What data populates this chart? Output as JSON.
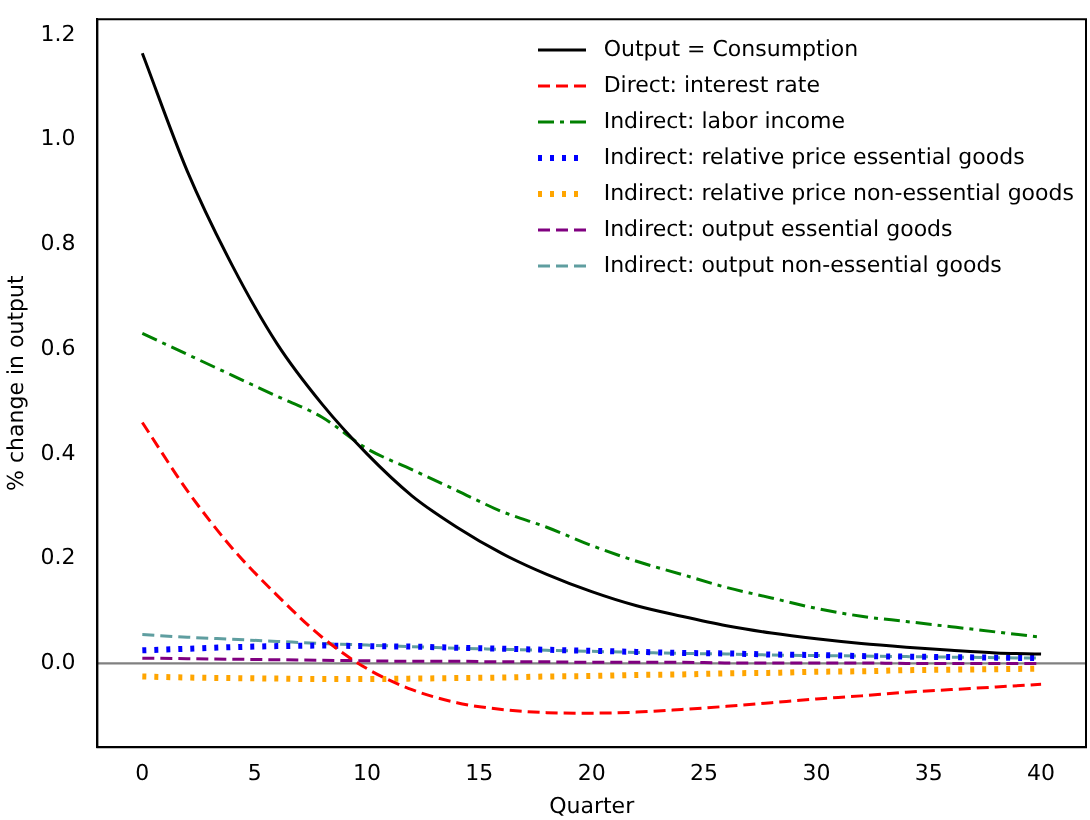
{
  "chart_data": {
    "type": "line",
    "xlabel": "Quarter",
    "ylabel": "% change in output",
    "x": [
      0,
      2,
      4,
      6,
      8,
      10,
      12,
      14,
      16,
      18,
      20,
      22,
      24,
      26,
      28,
      30,
      32,
      34,
      36,
      38,
      40
    ],
    "xlim": [
      -2,
      42
    ],
    "xticks": [
      0,
      5,
      10,
      15,
      20,
      25,
      30,
      35,
      40
    ],
    "ylim": [
      -0.16,
      1.23
    ],
    "yticks": [
      {
        "value": 0,
        "label": "0.0"
      },
      {
        "value": 0.2,
        "label": "0.2"
      },
      {
        "value": 0.4,
        "label": "0.4"
      },
      {
        "value": 0.6,
        "label": "0.6"
      },
      {
        "value": 0.8,
        "label": "0.8"
      },
      {
        "value": 1.0,
        "label": "1.0"
      },
      {
        "value": 1.2,
        "label": "1.2"
      }
    ],
    "grid": false,
    "legend": "top right",
    "marker": "none",
    "ref_lines": [
      {
        "axis": "y",
        "value": 0,
        "color": "#808080"
      }
    ],
    "series": [
      {
        "name": "Output = Consumption",
        "color": "#000000",
        "line_style": "solid",
        "values": [
          1.165,
          0.94,
          0.76,
          0.61,
          0.495,
          0.4,
          0.32,
          0.26,
          0.21,
          0.17,
          0.137,
          0.11,
          0.09,
          0.072,
          0.058,
          0.047,
          0.038,
          0.031,
          0.025,
          0.02,
          0.018
        ]
      },
      {
        "name": "Direct: interest rate",
        "color": "#ff0000",
        "line_style": "dashed",
        "values": [
          0.46,
          0.33,
          0.22,
          0.13,
          0.05,
          -0.01,
          -0.05,
          -0.075,
          -0.088,
          -0.094,
          -0.095,
          -0.093,
          -0.088,
          -0.082,
          -0.075,
          -0.068,
          -0.062,
          -0.055,
          -0.05,
          -0.045,
          -0.04
        ]
      },
      {
        "name": "Indirect: labor income",
        "color": "#008000",
        "line_style": "dashdot",
        "values": [
          0.63,
          0.59,
          0.55,
          0.51,
          0.47,
          0.41,
          0.37,
          0.33,
          0.29,
          0.26,
          0.225,
          0.195,
          0.17,
          0.145,
          0.125,
          0.105,
          0.09,
          0.08,
          0.07,
          0.06,
          0.05
        ]
      },
      {
        "name": "Indirect: relative price essential goods",
        "color": "#0000ff",
        "line_style": "dotted",
        "values": [
          0.025,
          0.028,
          0.031,
          0.033,
          0.034,
          0.033,
          0.032,
          0.03,
          0.028,
          0.026,
          0.024,
          0.022,
          0.02,
          0.019,
          0.017,
          0.016,
          0.014,
          0.013,
          0.012,
          0.011,
          0.01
        ]
      },
      {
        "name": "Indirect: relative price non-essential goods",
        "color": "#ffa500",
        "line_style": "dotted",
        "values": [
          -0.025,
          -0.027,
          -0.028,
          -0.029,
          -0.03,
          -0.03,
          -0.029,
          -0.028,
          -0.027,
          -0.025,
          -0.024,
          -0.022,
          -0.021,
          -0.019,
          -0.018,
          -0.016,
          -0.015,
          -0.013,
          -0.012,
          -0.011,
          -0.01
        ]
      },
      {
        "name": "Indirect: output essential goods",
        "color": "#800080",
        "line_style": "dashed",
        "values": [
          0.01,
          0.009,
          0.008,
          0.007,
          0.006,
          0.005,
          0.004,
          0.004,
          0.003,
          0.003,
          0.002,
          0.002,
          0.002,
          0.001,
          0.001,
          0.001,
          0.001,
          0.0,
          0.0,
          0.0,
          0.0
        ]
      },
      {
        "name": "Indirect: output non-essential goods",
        "color": "#5f9ea0",
        "line_style": "dashed",
        "values": [
          0.055,
          0.05,
          0.046,
          0.042,
          0.038,
          0.035,
          0.032,
          0.029,
          0.027,
          0.025,
          0.023,
          0.021,
          0.019,
          0.018,
          0.016,
          0.015,
          0.014,
          0.013,
          0.012,
          0.011,
          0.01
        ]
      }
    ]
  }
}
